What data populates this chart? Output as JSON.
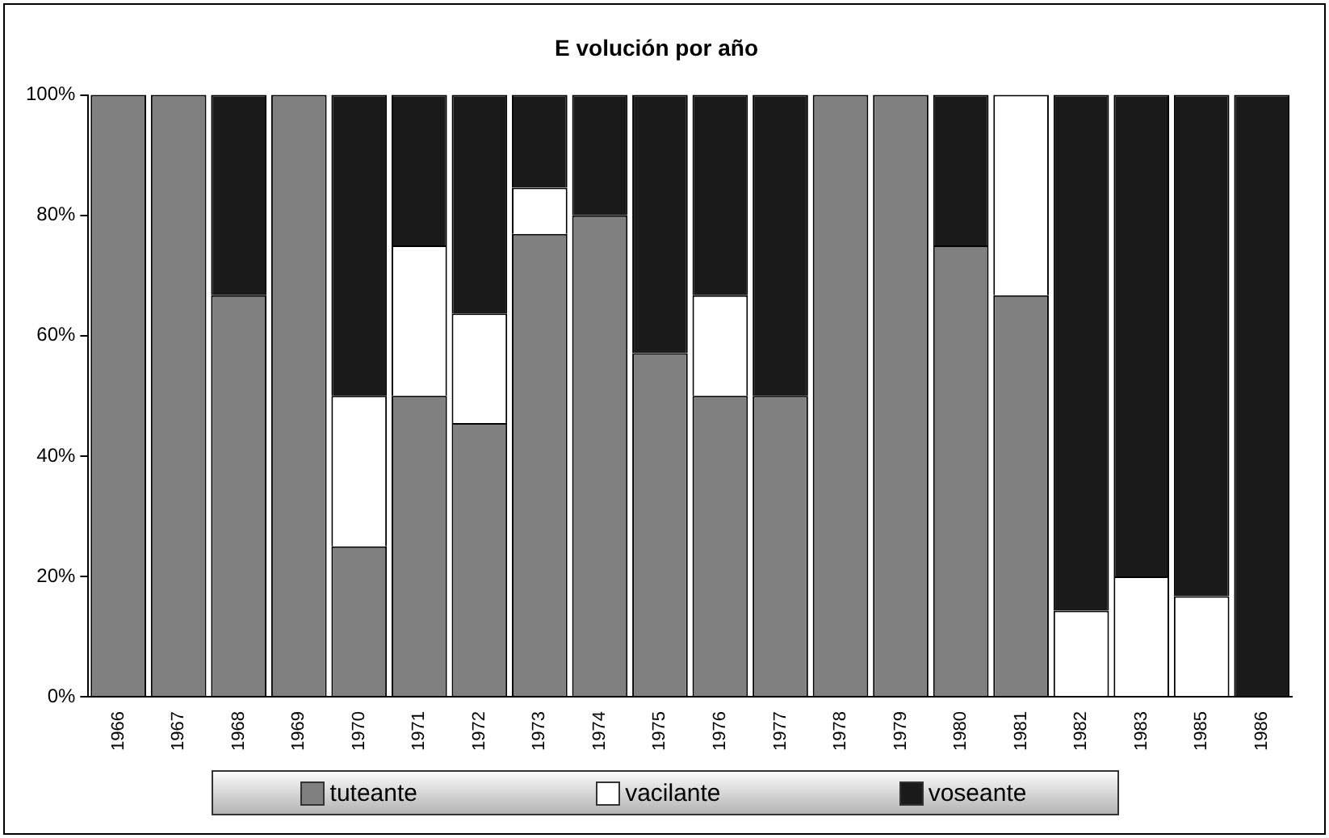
{
  "chart_data": {
    "type": "bar",
    "title": "E volución por año",
    "stacked": true,
    "categories": [
      "1966",
      "1967",
      "1968",
      "1969",
      "1970",
      "1971",
      "1972",
      "1973",
      "1974",
      "1975",
      "1976",
      "1977",
      "1978",
      "1979",
      "1980",
      "1981",
      "1982",
      "1983",
      "1985",
      "1986"
    ],
    "series": [
      {
        "name": "tuteante",
        "color": "#808080",
        "values": [
          100,
          100,
          66.7,
          100,
          25,
          50,
          45.5,
          76.9,
          80,
          57.1,
          50,
          50,
          100,
          100,
          75,
          66.7,
          0,
          0,
          0,
          0
        ]
      },
      {
        "name": "vacilante",
        "color": "#ffffff",
        "values": [
          0,
          0,
          0,
          0,
          25,
          25,
          18.2,
          7.7,
          0,
          0,
          16.7,
          0,
          0,
          0,
          0,
          33.3,
          14.3,
          20,
          16.7,
          0
        ]
      },
      {
        "name": "voseante",
        "color": "#1a1a1a",
        "values": [
          0,
          0,
          33.3,
          0,
          50,
          25,
          36.3,
          15.4,
          20,
          42.9,
          33.3,
          50,
          0,
          0,
          25,
          0,
          85.7,
          80,
          83.3,
          100
        ]
      }
    ],
    "ylim": [
      0,
      100
    ],
    "yticks": [
      {
        "value": 0,
        "label": "0%"
      },
      {
        "value": 20,
        "label": "20%"
      },
      {
        "value": 40,
        "label": "40%"
      },
      {
        "value": 60,
        "label": "60%"
      },
      {
        "value": 80,
        "label": "80%"
      },
      {
        "value": 100,
        "label": "100%"
      }
    ],
    "grid": false,
    "legend": "bottom"
  }
}
